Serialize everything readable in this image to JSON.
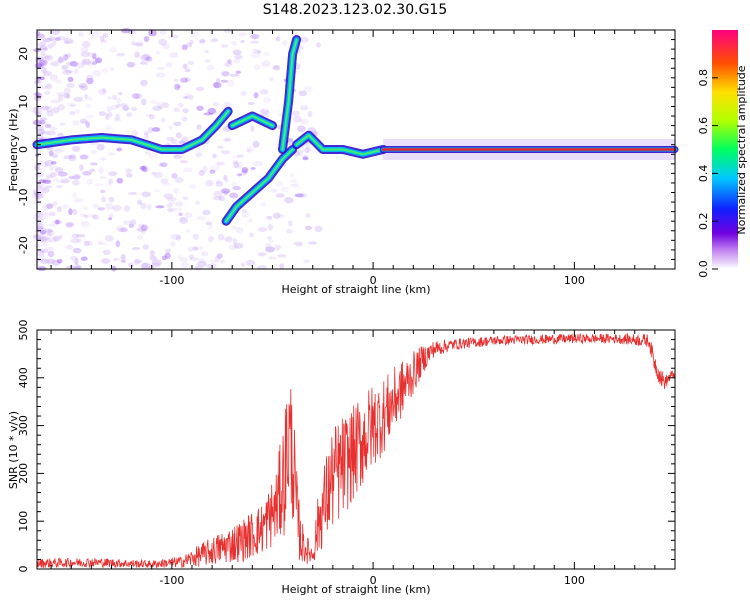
{
  "title": "S148.2023.123.02.30.G15",
  "chart_data": [
    {
      "type": "heatmap",
      "xlabel": "Height of straight line (km)",
      "ylabel": "Frequency (Hz)",
      "xlim": [
        -167,
        150
      ],
      "ylim": [
        -25,
        25
      ],
      "xticks": [
        -100,
        0,
        100
      ],
      "yticks": [
        -20,
        -10,
        0,
        10,
        20
      ],
      "colorbar": {
        "label": "Normalized spectral amplitude",
        "range": [
          0,
          1
        ],
        "ticks": [
          0.0,
          0.2,
          0.4,
          0.6,
          0.8
        ]
      },
      "ridges": [
        {
          "x": [
            -167,
            -150,
            -135,
            -120,
            -105,
            -95,
            -85,
            -78,
            -72
          ],
          "y": [
            1,
            2,
            2.5,
            2,
            0,
            0,
            2,
            5,
            8
          ]
        },
        {
          "x": [
            -70,
            -65,
            -60,
            -55,
            -50
          ],
          "y": [
            5,
            6,
            7,
            6,
            5
          ]
        },
        {
          "x": [
            -73,
            -68,
            -60,
            -52,
            -45,
            -40
          ],
          "y": [
            -15,
            -12,
            -9,
            -6,
            -2,
            0
          ]
        },
        {
          "x": [
            -45,
            -42,
            -40,
            -38
          ],
          "y": [
            0,
            10,
            20,
            23
          ]
        },
        {
          "x": [
            -38,
            -32,
            -25,
            -15,
            -5,
            5
          ],
          "y": [
            1,
            3,
            0,
            0,
            -1,
            0
          ]
        },
        {
          "x": [
            5,
            150
          ],
          "y": [
            0,
            0
          ]
        }
      ]
    },
    {
      "type": "line",
      "xlabel": "Height of straight line (km)",
      "ylabel": "SNR (10 * v/v)",
      "xlim": [
        -167,
        150
      ],
      "ylim": [
        0,
        500
      ],
      "xticks": [
        -100,
        0,
        100
      ],
      "yticks": [
        0,
        100,
        200,
        300,
        400,
        500
      ],
      "color": "#e8302f",
      "envelope": {
        "x": [
          -167,
          -140,
          -110,
          -95,
          -85,
          -75,
          -65,
          -55,
          -48,
          -44,
          -42,
          -40,
          -38,
          -36,
          -33,
          -30,
          -27,
          -24,
          -20,
          -16,
          -10,
          -5,
          0,
          5,
          10,
          15,
          20,
          25,
          30,
          40,
          60,
          80,
          100,
          120,
          137,
          140,
          143,
          145,
          147,
          150
        ],
        "mean": [
          12,
          14,
          10,
          15,
          30,
          45,
          60,
          85,
          130,
          200,
          280,
          240,
          120,
          60,
          40,
          30,
          100,
          140,
          190,
          210,
          240,
          270,
          300,
          320,
          350,
          380,
          410,
          440,
          460,
          470,
          478,
          480,
          482,
          482,
          478,
          430,
          400,
          390,
          400,
          410
        ],
        "noise": [
          10,
          10,
          8,
          12,
          25,
          35,
          45,
          55,
          80,
          130,
          160,
          140,
          90,
          50,
          30,
          20,
          70,
          90,
          110,
          110,
          100,
          100,
          90,
          80,
          70,
          60,
          45,
          30,
          18,
          12,
          10,
          10,
          10,
          10,
          14,
          20,
          20,
          15,
          12,
          10
        ]
      }
    }
  ]
}
